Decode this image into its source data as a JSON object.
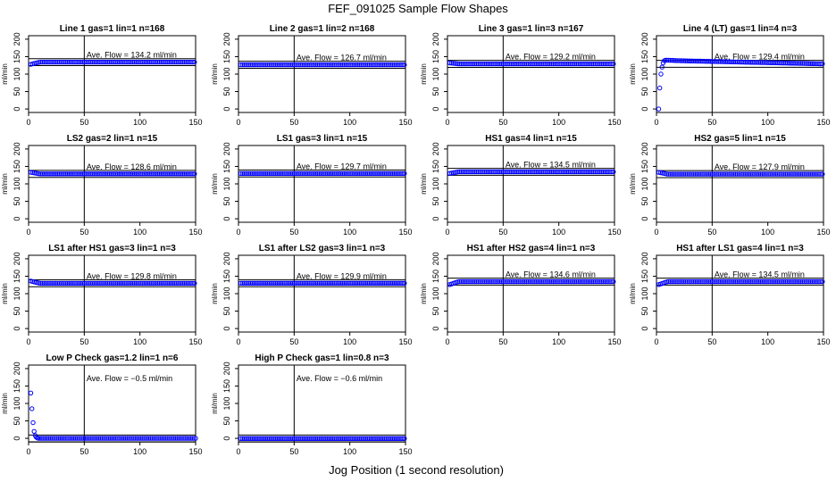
{
  "title": "FEF_091025  Sample Flow Shapes",
  "xlabel": "Jog Position (1 second resolution)",
  "chart_data": [
    {
      "type": "scatter",
      "title": "Line 1 gas=1 lin=1 n=168",
      "ylabel": "ml/min",
      "annotation": "Ave. Flow = 134.2 ml/min",
      "mean": 134.2,
      "pattern": "flat",
      "start": 128,
      "xlim": [
        0,
        150
      ],
      "ylim": [
        -10,
        210
      ],
      "xticks": [
        0,
        50,
        100,
        150
      ],
      "yticks": [
        0,
        50,
        100,
        150,
        200
      ],
      "vline": 50
    },
    {
      "type": "scatter",
      "title": "Line 2 gas=1 lin=2 n=168",
      "ylabel": "ml/min",
      "annotation": "Ave. Flow = 126.7 ml/min",
      "mean": 126.7,
      "pattern": "flat",
      "start": 126.7,
      "xlim": [
        0,
        150
      ],
      "ylim": [
        -10,
        210
      ],
      "xticks": [
        0,
        50,
        100,
        150
      ],
      "yticks": [
        0,
        50,
        100,
        150,
        200
      ],
      "vline": 50
    },
    {
      "type": "scatter",
      "title": "Line 3 gas=1 lin=3 n=167",
      "ylabel": "ml/min",
      "annotation": "Ave. Flow = 129.2 ml/min",
      "mean": 129.2,
      "pattern": "flat",
      "start": 132,
      "xlim": [
        0,
        150
      ],
      "ylim": [
        -10,
        210
      ],
      "xticks": [
        0,
        50,
        100,
        150
      ],
      "yticks": [
        0,
        50,
        100,
        150,
        200
      ],
      "vline": 50
    },
    {
      "type": "scatter",
      "title": "Line 4 (LT) gas=1 lin=4 n=3",
      "ylabel": "ml/min",
      "annotation": "Ave. Flow = 129.4 ml/min",
      "mean": 129.4,
      "pattern": "rise",
      "start": 0,
      "xlim": [
        0,
        150
      ],
      "ylim": [
        -10,
        210
      ],
      "xticks": [
        0,
        50,
        100,
        150
      ],
      "yticks": [
        0,
        50,
        100,
        150,
        200
      ],
      "vline": 50
    },
    {
      "type": "scatter",
      "title": "LS2 gas=2 lin=1 n=15",
      "ylabel": "ml/min",
      "annotation": "Ave. Flow = 128.6 ml/min",
      "mean": 128.6,
      "pattern": "flat",
      "start": 133,
      "xlim": [
        0,
        150
      ],
      "ylim": [
        -10,
        210
      ],
      "xticks": [
        0,
        50,
        100,
        150
      ],
      "yticks": [
        0,
        50,
        100,
        150,
        200
      ],
      "vline": 50
    },
    {
      "type": "scatter",
      "title": "LS1 gas=3 lin=1 n=15",
      "ylabel": "ml/min",
      "annotation": "Ave. Flow = 129.7 ml/min",
      "mean": 129.7,
      "pattern": "flat",
      "start": 129.7,
      "xlim": [
        0,
        150
      ],
      "ylim": [
        -10,
        210
      ],
      "xticks": [
        0,
        50,
        100,
        150
      ],
      "yticks": [
        0,
        50,
        100,
        150,
        200
      ],
      "vline": 50
    },
    {
      "type": "scatter",
      "title": "HS1 gas=4 lin=1 n=15",
      "ylabel": "ml/min",
      "annotation": "Ave. Flow = 134.5 ml/min",
      "mean": 134.5,
      "pattern": "flat",
      "start": 130,
      "xlim": [
        0,
        150
      ],
      "ylim": [
        -10,
        210
      ],
      "xticks": [
        0,
        50,
        100,
        150
      ],
      "yticks": [
        0,
        50,
        100,
        150,
        200
      ],
      "vline": 50
    },
    {
      "type": "scatter",
      "title": "HS2 gas=5 lin=1 n=15",
      "ylabel": "ml/min",
      "annotation": "Ave. Flow = 127.9 ml/min",
      "mean": 127.9,
      "pattern": "flat",
      "start": 133,
      "xlim": [
        0,
        150
      ],
      "ylim": [
        -10,
        210
      ],
      "xticks": [
        0,
        50,
        100,
        150
      ],
      "yticks": [
        0,
        50,
        100,
        150,
        200
      ],
      "vline": 50
    },
    {
      "type": "scatter",
      "title": "LS1 after HS1 gas=3 lin=1 n=3",
      "ylabel": "ml/min",
      "annotation": "Ave. Flow = 129.8 ml/min",
      "mean": 129.8,
      "pattern": "flat",
      "start": 136,
      "xlim": [
        0,
        150
      ],
      "ylim": [
        -10,
        210
      ],
      "xticks": [
        0,
        50,
        100,
        150
      ],
      "yticks": [
        0,
        50,
        100,
        150,
        200
      ],
      "vline": 50
    },
    {
      "type": "scatter",
      "title": "LS1 after LS2 gas=3 lin=1 n=3",
      "ylabel": "ml/min",
      "annotation": "Ave. Flow = 129.9 ml/min",
      "mean": 129.9,
      "pattern": "flat",
      "start": 129.9,
      "xlim": [
        0,
        150
      ],
      "ylim": [
        -10,
        210
      ],
      "xticks": [
        0,
        50,
        100,
        150
      ],
      "yticks": [
        0,
        50,
        100,
        150,
        200
      ],
      "vline": 50
    },
    {
      "type": "scatter",
      "title": "HS1 after HS2 gas=4 lin=1 n=3",
      "ylabel": "ml/min",
      "annotation": "Ave. Flow = 134.6 ml/min",
      "mean": 134.6,
      "pattern": "flat",
      "start": 126,
      "xlim": [
        0,
        150
      ],
      "ylim": [
        -10,
        210
      ],
      "xticks": [
        0,
        50,
        100,
        150
      ],
      "yticks": [
        0,
        50,
        100,
        150,
        200
      ],
      "vline": 50
    },
    {
      "type": "scatter",
      "title": "HS1 after LS1 gas=4 lin=1 n=3",
      "ylabel": "ml/min",
      "annotation": "Ave. Flow = 134.5 ml/min",
      "mean": 134.5,
      "pattern": "flat",
      "start": 126,
      "xlim": [
        0,
        150
      ],
      "ylim": [
        -10,
        210
      ],
      "xticks": [
        0,
        50,
        100,
        150
      ],
      "yticks": [
        0,
        50,
        100,
        150,
        200
      ],
      "vline": 50
    },
    {
      "type": "scatter",
      "title": "Low P Check gas=1.2 lin=1 n=6",
      "ylabel": "ml/min",
      "annotation": "Ave. Flow = −0.5 ml/min",
      "mean": -0.5,
      "pattern": "drop",
      "start": 130,
      "xlim": [
        0,
        150
      ],
      "ylim": [
        -10,
        210
      ],
      "xticks": [
        0,
        50,
        100,
        150
      ],
      "yticks": [
        0,
        50,
        100,
        150,
        200
      ],
      "vline": 50
    },
    {
      "type": "scatter",
      "title": "High P Check gas=1 lin=0.8 n=3",
      "ylabel": "ml/min",
      "annotation": "Ave. Flow = −0.6 ml/min",
      "mean": -0.6,
      "pattern": "flat",
      "start": -0.6,
      "xlim": [
        0,
        150
      ],
      "ylim": [
        -10,
        210
      ],
      "xticks": [
        0,
        50,
        100,
        150
      ],
      "yticks": [
        0,
        50,
        100,
        150,
        200
      ],
      "vline": 50
    }
  ],
  "colors": {
    "points": "#0000ff",
    "axes": "#000000",
    "background": "#ffffff"
  }
}
